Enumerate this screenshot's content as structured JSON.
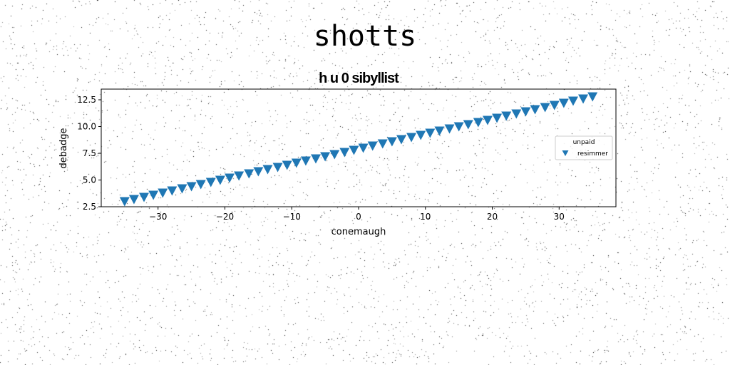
{
  "figure": {
    "suptitle": "shotts"
  },
  "chart_data": {
    "type": "scatter",
    "title": "h u 0 sibyllist",
    "xlabel": "conemaugh",
    "ylabel": "debadge",
    "xlim": [
      -38.5,
      38.5
    ],
    "ylim": [
      2.5,
      13.5
    ],
    "xticks": [
      -30,
      -20,
      -10,
      0,
      10,
      20,
      30
    ],
    "xtick_labels": [
      "−30",
      "−20",
      "−10",
      "0",
      "10",
      "20",
      "30"
    ],
    "yticks": [
      2.5,
      5.0,
      7.5,
      10.0,
      12.5
    ],
    "ytick_labels": [
      "2.5",
      "5.0",
      "7.5",
      "10.0",
      "12.5"
    ],
    "grid": false,
    "legend": {
      "title": "unpaid",
      "placement": "right"
    },
    "series": [
      {
        "name": "resimmer",
        "marker": "triangle-down",
        "color": "#1f77b4",
        "points": [
          [
            -35.0,
            3.0
          ],
          [
            -33.6,
            3.2
          ],
          [
            -32.1,
            3.4
          ],
          [
            -30.7,
            3.6
          ],
          [
            -29.3,
            3.8
          ],
          [
            -27.9,
            4.0
          ],
          [
            -26.4,
            4.2
          ],
          [
            -25.0,
            4.4
          ],
          [
            -23.6,
            4.6
          ],
          [
            -22.1,
            4.8
          ],
          [
            -20.7,
            5.0
          ],
          [
            -19.3,
            5.2
          ],
          [
            -17.9,
            5.4
          ],
          [
            -16.4,
            5.6
          ],
          [
            -15.0,
            5.8
          ],
          [
            -13.6,
            6.0
          ],
          [
            -12.1,
            6.2
          ],
          [
            -10.7,
            6.4
          ],
          [
            -9.3,
            6.6
          ],
          [
            -7.9,
            6.8
          ],
          [
            -6.4,
            7.0
          ],
          [
            -5.0,
            7.2
          ],
          [
            -3.6,
            7.4
          ],
          [
            -2.1,
            7.6
          ],
          [
            -0.7,
            7.8
          ],
          [
            0.7,
            8.0
          ],
          [
            2.1,
            8.2
          ],
          [
            3.6,
            8.4
          ],
          [
            5.0,
            8.6
          ],
          [
            6.4,
            8.8
          ],
          [
            7.9,
            9.0
          ],
          [
            9.3,
            9.2
          ],
          [
            10.7,
            9.4
          ],
          [
            12.1,
            9.6
          ],
          [
            13.6,
            9.8
          ],
          [
            15.0,
            10.0
          ],
          [
            16.4,
            10.2
          ],
          [
            17.9,
            10.4
          ],
          [
            19.3,
            10.6
          ],
          [
            20.7,
            10.8
          ],
          [
            22.1,
            11.0
          ],
          [
            23.6,
            11.2
          ],
          [
            25.0,
            11.4
          ],
          [
            26.4,
            11.6
          ],
          [
            27.9,
            11.8
          ],
          [
            29.3,
            12.0
          ],
          [
            30.7,
            12.2
          ],
          [
            32.1,
            12.4
          ],
          [
            33.6,
            12.6
          ],
          [
            35.0,
            12.8
          ]
        ]
      }
    ]
  }
}
